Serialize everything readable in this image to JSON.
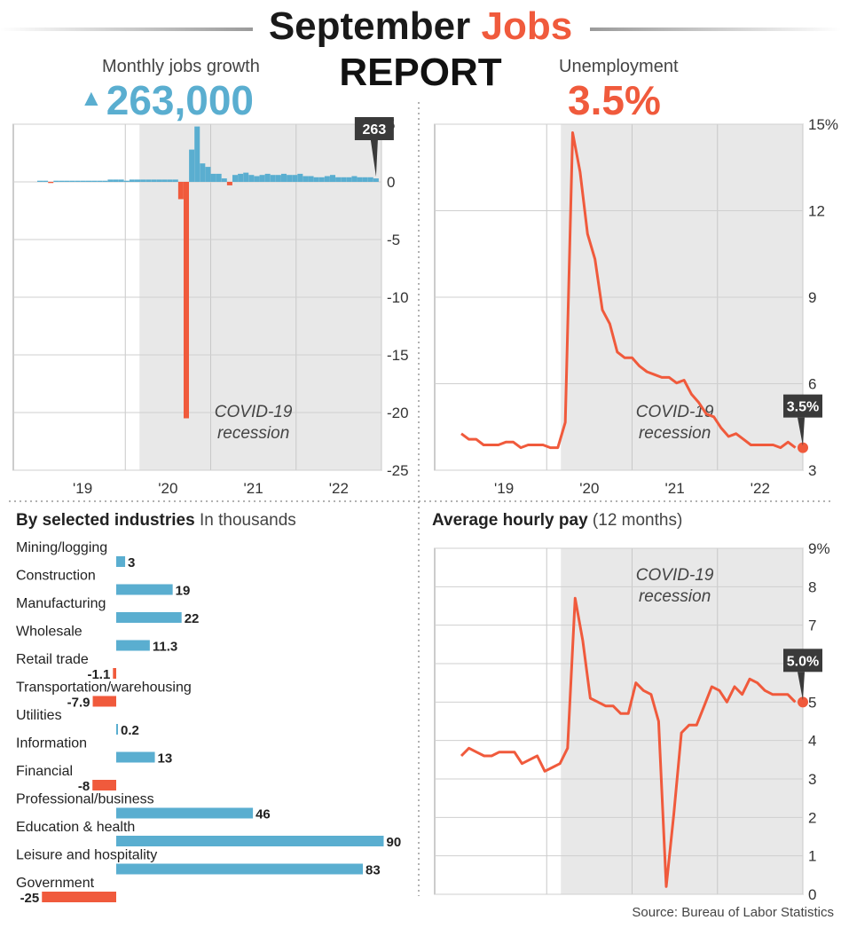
{
  "header": {
    "title_word1": "September ",
    "title_word2": "Jobs",
    "title_line2": "REPORT"
  },
  "kpis": {
    "jobs_label": "Monthly jobs growth",
    "jobs_value": "263,000",
    "unemployment_label": "Unemployment",
    "unemployment_value": "3.5%"
  },
  "panels": {
    "industries_title": "By selected industries",
    "industries_units": "In thousands",
    "pay_title": "Average hourly pay",
    "pay_units": "(12 months)",
    "source": "Source: Bureau of Labor Statistics"
  },
  "colors": {
    "positive": "#5aaed0",
    "negative": "#f05a3c",
    "recession": "#e8e8e8",
    "callout": "#3a3a3a"
  },
  "chart_data": [
    {
      "type": "bar",
      "name": "monthly-jobs-growth",
      "subtitle": "In thousands",
      "annotation": "COVID-19 recession",
      "callout": "263",
      "x_ticks": [
        "'19",
        "'20",
        "'21",
        "'22"
      ],
      "y_ticks": [
        "5",
        "0",
        "-5",
        "-10",
        "-15",
        "-20",
        "-25"
      ],
      "ylim": [
        -25,
        5
      ],
      "grid": true,
      "first_year": 2019,
      "values": [
        0.1,
        0.1,
        -0.1,
        0.1,
        0.1,
        0.1,
        0.1,
        0.1,
        0.1,
        0.1,
        0.1,
        0.1,
        0.1,
        0.2,
        0.2,
        0.2,
        0.1,
        0.2,
        0.2,
        0.2,
        0.2,
        0.2,
        0.2,
        0.2,
        0.2,
        0.2,
        -1.5,
        -20.5,
        2.8,
        4.8,
        1.6,
        1.3,
        0.7,
        0.7,
        0.3,
        -0.3,
        0.6,
        0.7,
        0.8,
        0.6,
        0.5,
        0.6,
        0.7,
        0.6,
        0.6,
        0.7,
        0.6,
        0.6,
        0.7,
        0.5,
        0.5,
        0.4,
        0.4,
        0.5,
        0.6,
        0.4,
        0.4,
        0.4,
        0.5,
        0.4,
        0.4,
        0.4,
        0.3
      ]
    },
    {
      "type": "line",
      "name": "unemployment-rate",
      "annotation": "COVID-19 recession",
      "callout": "3.5%",
      "x_ticks": [
        "'19",
        "'20",
        "'21",
        "'22"
      ],
      "y_ticks": [
        "15%",
        "12",
        "9",
        "6",
        "3"
      ],
      "ylim": [
        2.7,
        15
      ],
      "grid": true,
      "first_year": 2019,
      "values": [
        4.0,
        3.8,
        3.8,
        3.6,
        3.6,
        3.6,
        3.7,
        3.7,
        3.5,
        3.6,
        3.6,
        3.6,
        3.5,
        3.5,
        4.4,
        14.7,
        13.3,
        11.1,
        10.2,
        8.4,
        7.9,
        6.9,
        6.7,
        6.7,
        6.4,
        6.2,
        6.1,
        6.0,
        6.0,
        5.8,
        5.9,
        5.4,
        5.1,
        4.7,
        4.6,
        4.2,
        3.9,
        4.0,
        3.8,
        3.6,
        3.6,
        3.6,
        3.6,
        3.5,
        3.7,
        3.5
      ]
    },
    {
      "type": "bar",
      "name": "industries",
      "units": "In thousands",
      "categories": [
        "Mining/logging",
        "Construction",
        "Manufacturing",
        "Wholesale",
        "Retail trade",
        "Transportation/warehousing",
        "Utilities",
        "Information",
        "Financial",
        "Professional/business",
        "Education & health",
        "Leisure and hospitality",
        "Government"
      ],
      "values": [
        3,
        19,
        22,
        11.3,
        -1.1,
        -7.9,
        0.2,
        13,
        -8,
        46,
        90,
        83,
        -25
      ],
      "labels": [
        "3",
        "19",
        "22",
        "11.3",
        "-1.1",
        "-7.9",
        "0.2",
        "13",
        "-8",
        "46",
        "90",
        "83",
        "-25"
      ]
    },
    {
      "type": "line",
      "name": "average-hourly-pay",
      "annotation": "COVID-19 recession",
      "callout": "5.0%",
      "x_ticks": [
        "'19",
        "'20",
        "'21",
        "'22"
      ],
      "y_ticks": [
        "9%",
        "8",
        "7",
        "6",
        "5",
        "4",
        "3",
        "2",
        "1",
        "0"
      ],
      "ylim": [
        0,
        9
      ],
      "grid": true,
      "first_year": 2019,
      "values": [
        3.6,
        3.8,
        3.7,
        3.6,
        3.6,
        3.7,
        3.7,
        3.7,
        3.4,
        3.5,
        3.6,
        3.2,
        3.3,
        3.4,
        3.8,
        7.7,
        6.6,
        5.1,
        5.0,
        4.9,
        4.9,
        4.7,
        4.7,
        5.5,
        5.3,
        5.2,
        4.5,
        0.2,
        2.1,
        4.2,
        4.4,
        4.4,
        4.9,
        5.4,
        5.3,
        5.0,
        5.4,
        5.2,
        5.6,
        5.5,
        5.3,
        5.2,
        5.2,
        5.2,
        5.0
      ]
    }
  ]
}
